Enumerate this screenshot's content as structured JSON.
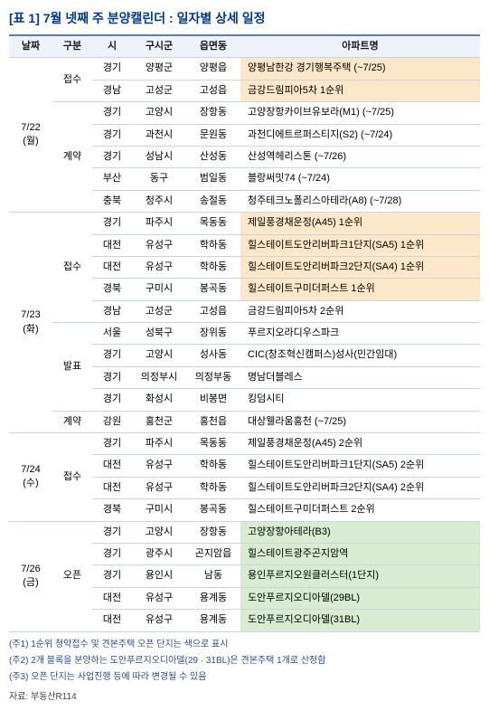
{
  "title": "[표 1] 7월 넷째 주 분양캘린더 : 일자별 상세 일정",
  "headers": {
    "date": "날짜",
    "gubun": "구분",
    "si": "시",
    "gusigun": "구시군",
    "eup": "읍면동",
    "apt": "아파트명"
  },
  "colors": {
    "title": "#003b8e",
    "header_bg": "#eef3fb",
    "header_border_top": "#5d7db3",
    "border": "#c9d4e6",
    "hl_orange": "#fde7c9",
    "hl_green": "#d7ecd0",
    "footnote": "#2a4d9c"
  },
  "days": [
    {
      "date": "7/22\n(월)",
      "groups": [
        {
          "gubun": "접수",
          "rows": [
            {
              "si": "경기",
              "gusigun": "양평군",
              "eup": "양평읍",
              "apt": "양평남한강 경기행복주택  (~7/25)",
              "hl": "orange"
            },
            {
              "si": "경남",
              "gusigun": "고성군",
              "eup": "고성읍",
              "apt": "금강드림피아5차 1순위",
              "hl": "orange"
            }
          ]
        },
        {
          "gubun": "계약",
          "rows": [
            {
              "si": "경기",
              "gusigun": "고양시",
              "eup": "장항동",
              "apt": "고양장항카이브유보라(M1)  (~7/25)",
              "hl": null
            },
            {
              "si": "경기",
              "gusigun": "과천시",
              "eup": "문원동",
              "apt": "과천디에트르퍼스티지(S2)  (~7/24)",
              "hl": null
            },
            {
              "si": "경기",
              "gusigun": "성남시",
              "eup": "산성동",
              "apt": "산성역헤리스톤  (~7/26)",
              "hl": null
            },
            {
              "si": "부산",
              "gusigun": "동구",
              "eup": "범일동",
              "apt": "블랑써밋74  (~7/24)",
              "hl": null
            },
            {
              "si": "충북",
              "gusigun": "청주시",
              "eup": "송절동",
              "apt": "청주테크노폴리스아테라(A8)  (~7/28)",
              "hl": null
            }
          ]
        }
      ]
    },
    {
      "date": "7/23\n(화)",
      "groups": [
        {
          "gubun": "접수",
          "rows": [
            {
              "si": "경기",
              "gusigun": "파주시",
              "eup": "목동동",
              "apt": "제일풍경채운정(A45) 1순위",
              "hl": "orange"
            },
            {
              "si": "대전",
              "gusigun": "유성구",
              "eup": "학하동",
              "apt": "힐스테이트도안리버파크1단지(SA5) 1순위",
              "hl": "orange"
            },
            {
              "si": "대전",
              "gusigun": "유성구",
              "eup": "학하동",
              "apt": "힐스테이트도안리버파크2단지(SA4) 1순위",
              "hl": "orange"
            },
            {
              "si": "경북",
              "gusigun": "구미시",
              "eup": "봉곡동",
              "apt": "힐스테이트구미더퍼스트 1순위",
              "hl": "orange"
            },
            {
              "si": "경남",
              "gusigun": "고성군",
              "eup": "고성읍",
              "apt": "금강드림피아5차 2순위",
              "hl": null
            }
          ]
        },
        {
          "gubun": "발표",
          "rows": [
            {
              "si": "서울",
              "gusigun": "성북구",
              "eup": "장위동",
              "apt": "푸르지오라디우스파크",
              "hl": null
            },
            {
              "si": "경기",
              "gusigun": "고양시",
              "eup": "성사동",
              "apt": "CIC(창조혁신캠퍼스)성사(민간임대)",
              "hl": null
            },
            {
              "si": "경기",
              "gusigun": "의정부시",
              "eup": "의정부동",
              "apt": "명남더블레스",
              "hl": null
            },
            {
              "si": "경기",
              "gusigun": "화성시",
              "eup": "비봉면",
              "apt": "킹덤시티",
              "hl": null
            }
          ]
        },
        {
          "gubun": "계약",
          "rows": [
            {
              "si": "강원",
              "gusigun": "홍천군",
              "eup": "홍천읍",
              "apt": "대상웰라움홍천  (~7/25)",
              "hl": null
            }
          ]
        }
      ]
    },
    {
      "date": "7/24\n(수)",
      "groups": [
        {
          "gubun": "접수",
          "rows": [
            {
              "si": "경기",
              "gusigun": "파주시",
              "eup": "목동동",
              "apt": "제일풍경채운정(A45) 2순위",
              "hl": null
            },
            {
              "si": "대전",
              "gusigun": "유성구",
              "eup": "학하동",
              "apt": "힐스테이트도안리버파크1단지(SA5) 2순위",
              "hl": null
            },
            {
              "si": "대전",
              "gusigun": "유성구",
              "eup": "학하동",
              "apt": "힐스테이트도안리버파크2단지(SA4) 2순위",
              "hl": null
            },
            {
              "si": "경북",
              "gusigun": "구미시",
              "eup": "봉곡동",
              "apt": "힐스테이트구미더퍼스트 2순위",
              "hl": null
            }
          ]
        }
      ]
    },
    {
      "date": "7/26\n(금)",
      "groups": [
        {
          "gubun": "오픈",
          "rows": [
            {
              "si": "경기",
              "gusigun": "고양시",
              "eup": "장항동",
              "apt": "고양장항아테라(B3)",
              "hl": "green"
            },
            {
              "si": "경기",
              "gusigun": "광주시",
              "eup": "곤지암읍",
              "apt": "힐스테이트광주곤지암역",
              "hl": "green"
            },
            {
              "si": "경기",
              "gusigun": "용인시",
              "eup": "남동",
              "apt": "용인푸르지오원클러스터(1단지)",
              "hl": "green"
            },
            {
              "si": "대전",
              "gusigun": "유성구",
              "eup": "용계동",
              "apt": "도안푸르지오디아델(29BL)",
              "hl": "green"
            },
            {
              "si": "대전",
              "gusigun": "유성구",
              "eup": "용계동",
              "apt": "도안푸르지오디아델(31BL)",
              "hl": "green"
            }
          ]
        }
      ]
    }
  ],
  "footnotes": [
    "(주1) 1순위 청약접수 및 견본주택 오픈 단지는 색으로 표시",
    "(주2) 2개 블록을 분양하는 도안푸르지오디아델(29 · 31BL)은 견본주택 1개로 산정함",
    "(주3) 오픈 단지는 사업진행 등에 따라 변경될 수 있음"
  ],
  "source": "자료: 부동산R114"
}
